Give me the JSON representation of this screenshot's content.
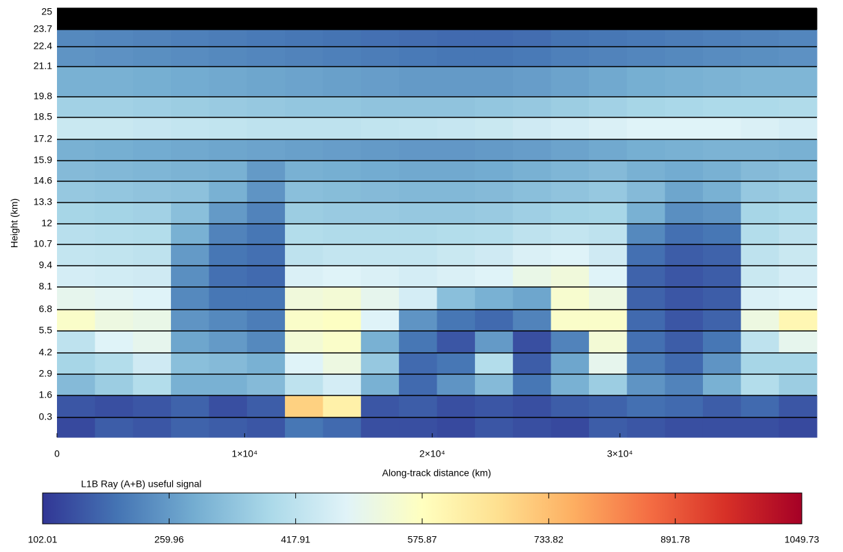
{
  "chart_data": {
    "type": "heatmap",
    "ylabel": "Height (km)",
    "xlabel": "Along-track distance (km)",
    "colorbar_label": "L1B Ray (A+B) useful signal",
    "xlim": [
      0,
      40500
    ],
    "xticks": [
      0,
      {
        "value": 10000,
        "label": "1×10⁴"
      },
      {
        "value": 20000,
        "label": "2×10⁴"
      },
      {
        "value": 30000,
        "label": "3×10⁴"
      }
    ],
    "ylim": [
      -0.6,
      25.0
    ],
    "yticks": [
      25.0,
      23.7,
      22.4,
      21.1,
      19.8,
      18.5,
      17.2,
      15.9,
      14.6,
      13.3,
      12.0,
      10.7,
      9.4,
      8.1,
      6.8,
      5.5,
      4.2,
      2.9,
      1.6,
      0.3
    ],
    "clim": [
      102.01,
      1049.73
    ],
    "cticks": [
      102.01,
      259.96,
      417.91,
      575.87,
      733.82,
      891.78,
      1049.73
    ],
    "colormap": [
      "#313695",
      "#4575b4",
      "#74add1",
      "#abd9e9",
      "#e0f3f8",
      "#ffffbf",
      "#fee090",
      "#fdae61",
      "#f46d43",
      "#d73027",
      "#a50026"
    ],
    "missing_color": "#000000",
    "grid_color": "#000000",
    "x_edges": [
      0,
      2025,
      4050,
      6075,
      8100,
      10125,
      12150,
      14175,
      16200,
      18225,
      20250,
      22275,
      24300,
      26325,
      28350,
      30375,
      32400,
      34425,
      36450,
      38475,
      40500
    ],
    "y_edges": [
      25.0,
      23.7,
      22.4,
      21.1,
      19.8,
      18.5,
      17.2,
      15.9,
      14.6,
      13.3,
      12.0,
      10.7,
      9.4,
      8.1,
      6.8,
      5.5,
      4.2,
      2.9,
      1.6,
      0.3,
      -0.6
    ],
    "z": [
      [
        null,
        null,
        null,
        null,
        null,
        null,
        null,
        null,
        null,
        null,
        null,
        null,
        null,
        null,
        null,
        null,
        null,
        null,
        null,
        null
      ],
      [
        230,
        225,
        220,
        215,
        210,
        205,
        200,
        195,
        190,
        185,
        180,
        180,
        185,
        195,
        200,
        205,
        210,
        215,
        220,
        225
      ],
      [
        250,
        245,
        240,
        235,
        230,
        225,
        220,
        215,
        210,
        205,
        200,
        200,
        205,
        215,
        220,
        225,
        230,
        235,
        240,
        245
      ],
      [
        300,
        300,
        295,
        290,
        285,
        280,
        275,
        270,
        265,
        260,
        260,
        260,
        265,
        275,
        285,
        295,
        300,
        305,
        310,
        310
      ],
      [
        370,
        370,
        365,
        360,
        355,
        350,
        345,
        345,
        340,
        340,
        340,
        345,
        350,
        360,
        370,
        380,
        385,
        390,
        390,
        395
      ],
      [
        440,
        440,
        435,
        430,
        425,
        420,
        420,
        420,
        425,
        430,
        435,
        440,
        450,
        460,
        470,
        480,
        480,
        480,
        470,
        460
      ],
      [
        300,
        295,
        290,
        285,
        280,
        275,
        270,
        265,
        260,
        255,
        255,
        260,
        265,
        275,
        285,
        295,
        300,
        305,
        305,
        300
      ],
      [
        320,
        315,
        310,
        305,
        300,
        260,
        300,
        295,
        290,
        285,
        285,
        290,
        300,
        310,
        320,
        300,
        290,
        300,
        320,
        330
      ],
      [
        350,
        345,
        340,
        335,
        300,
        250,
        330,
        325,
        320,
        315,
        315,
        320,
        330,
        340,
        350,
        320,
        280,
        300,
        350,
        360
      ],
      [
        380,
        375,
        370,
        330,
        260,
        220,
        360,
        355,
        355,
        350,
        350,
        355,
        365,
        375,
        380,
        300,
        240,
        250,
        380,
        390
      ],
      [
        410,
        405,
        400,
        300,
        220,
        200,
        400,
        395,
        395,
        395,
        400,
        405,
        420,
        430,
        420,
        230,
        190,
        200,
        400,
        420
      ],
      [
        430,
        425,
        420,
        260,
        200,
        190,
        420,
        430,
        430,
        430,
        440,
        450,
        470,
        480,
        450,
        190,
        160,
        170,
        420,
        440
      ],
      [
        460,
        455,
        450,
        240,
        190,
        180,
        470,
        480,
        470,
        460,
        470,
        480,
        510,
        530,
        480,
        170,
        150,
        160,
        440,
        460
      ],
      [
        500,
        490,
        480,
        230,
        200,
        200,
        530,
        540,
        500,
        460,
        330,
        300,
        280,
        550,
        520,
        170,
        150,
        160,
        470,
        480
      ],
      [
        560,
        520,
        510,
        250,
        230,
        210,
        560,
        570,
        480,
        250,
        200,
        180,
        220,
        560,
        560,
        180,
        150,
        170,
        520,
        600
      ],
      [
        420,
        480,
        500,
        280,
        260,
        230,
        540,
        560,
        300,
        200,
        150,
        260,
        140,
        220,
        540,
        190,
        160,
        200,
        420,
        500
      ],
      [
        380,
        400,
        450,
        330,
        320,
        300,
        480,
        520,
        350,
        180,
        200,
        400,
        160,
        280,
        500,
        210,
        180,
        250,
        380,
        380
      ],
      [
        320,
        360,
        400,
        300,
        300,
        320,
        420,
        460,
        300,
        180,
        250,
        320,
        200,
        300,
        360,
        250,
        220,
        300,
        400,
        360
      ],
      [
        150,
        140,
        150,
        170,
        140,
        160,
        700,
        620,
        150,
        160,
        140,
        150,
        140,
        160,
        170,
        190,
        180,
        160,
        180,
        150
      ],
      [
        130,
        160,
        150,
        170,
        160,
        150,
        200,
        180,
        140,
        140,
        130,
        150,
        140,
        130,
        160,
        150,
        140,
        140,
        140,
        130
      ]
    ]
  }
}
